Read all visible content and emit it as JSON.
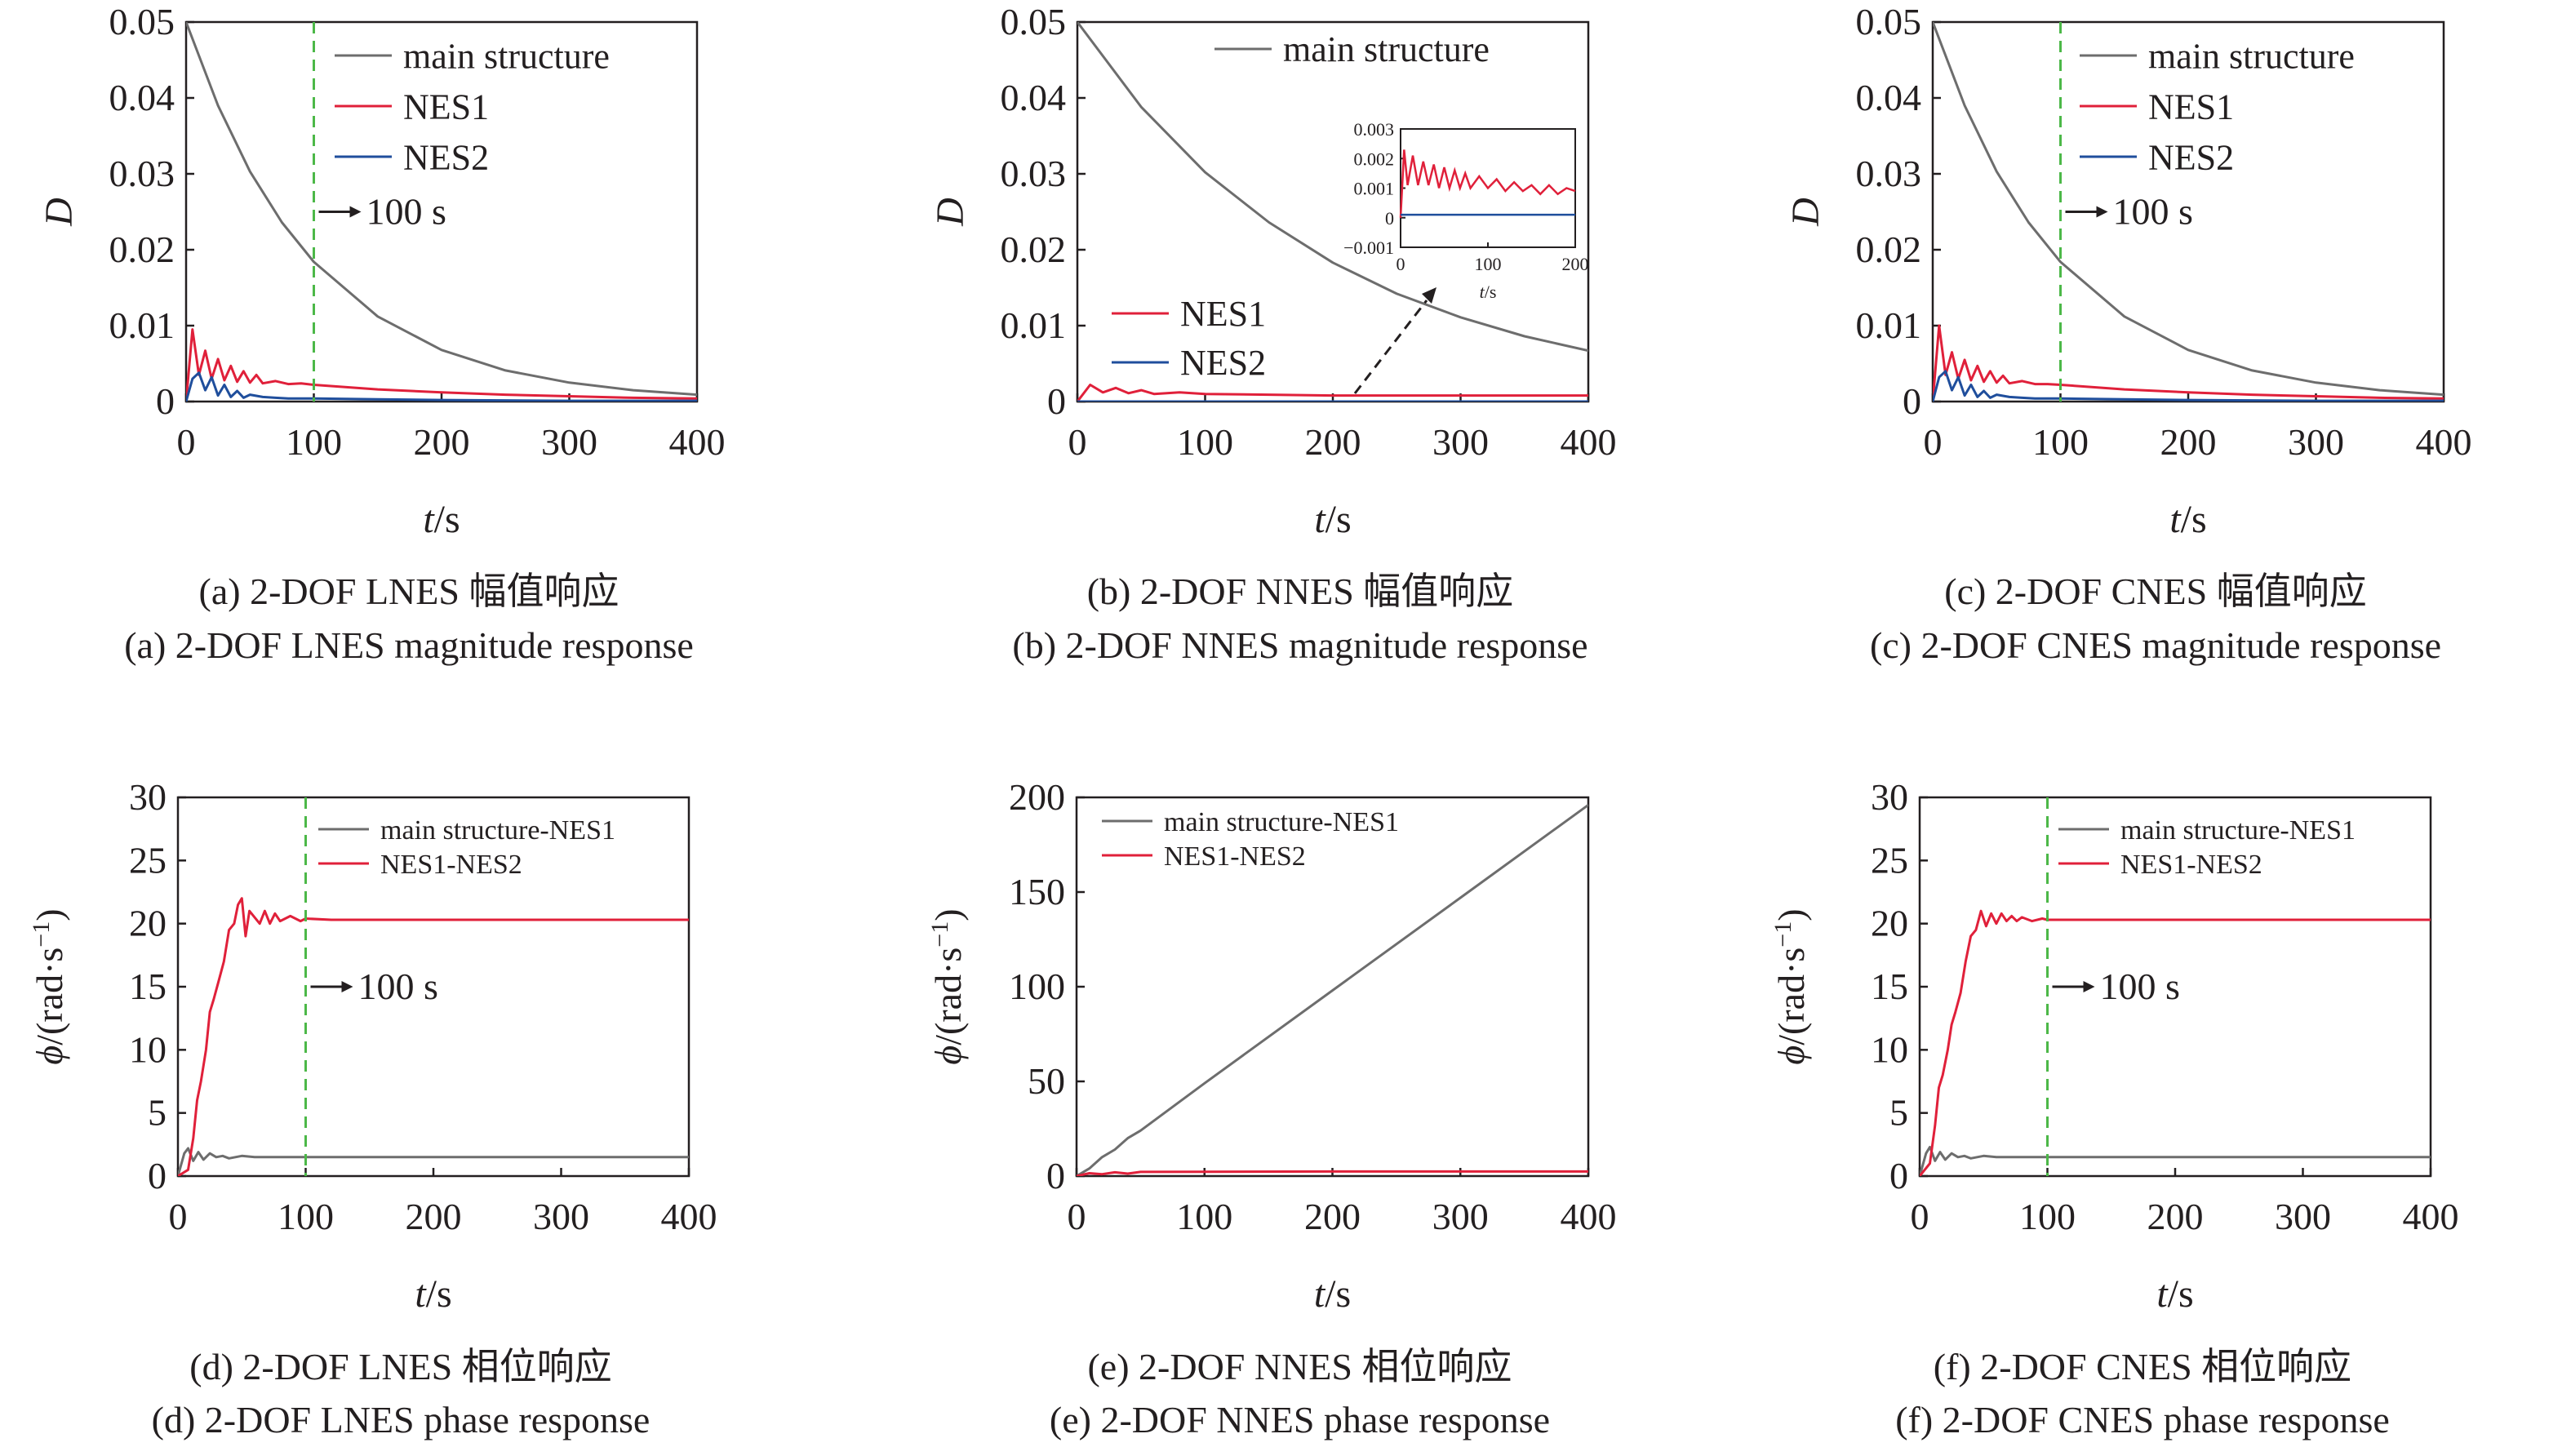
{
  "colors": {
    "main structure": "#6d6d6d",
    "NES1": "#e0203a",
    "NES2": "#1f4e9c",
    "main structure-NES1": "#6d6d6d",
    "NES1-NES2": "#e0203a",
    "marker": "#4cb848"
  },
  "chart_data": [
    {
      "type": "line",
      "caption_zh": "(a) 2-DOF LNES 幅值响应",
      "caption_en": "(a) 2-DOF LNES magnitude response",
      "xlabel_var": "t",
      "xlabel_unit": "/s",
      "ylabel": "D",
      "xlim": [
        0,
        400
      ],
      "ylim": [
        0,
        0.05
      ],
      "xticks": [
        "0",
        "100",
        "200",
        "300",
        "400"
      ],
      "yticks": [
        "0",
        "0.01",
        "0.02",
        "0.03",
        "0.04",
        "0.05"
      ],
      "marker_x": 100,
      "marker_label": "100 s",
      "marker_y": 0.025,
      "legend": "top-right",
      "series": [
        {
          "name": "main structure",
          "x": [
            0,
            25,
            50,
            75,
            100,
            150,
            200,
            250,
            300,
            350,
            400
          ],
          "y": [
            0.05,
            0.039,
            0.0303,
            0.0236,
            0.0184,
            0.0112,
            0.0068,
            0.0041,
            0.0025,
            0.0015,
            0.0009
          ]
        },
        {
          "name": "NES1",
          "x": [
            0,
            5,
            10,
            15,
            20,
            25,
            30,
            35,
            40,
            45,
            50,
            55,
            60,
            70,
            80,
            90,
            100,
            150,
            200,
            250,
            300,
            350,
            400
          ],
          "y": [
            0,
            0.0095,
            0.0035,
            0.0067,
            0.003,
            0.0056,
            0.0028,
            0.0047,
            0.0026,
            0.004,
            0.0025,
            0.0035,
            0.0024,
            0.0027,
            0.0023,
            0.0024,
            0.0022,
            0.0016,
            0.0012,
            0.0009,
            0.0007,
            0.0005,
            0.0004
          ]
        },
        {
          "name": "NES2",
          "x": [
            0,
            5,
            10,
            15,
            20,
            25,
            30,
            35,
            40,
            45,
            50,
            60,
            70,
            80,
            100,
            150,
            200,
            300,
            400
          ],
          "y": [
            0,
            0.003,
            0.0038,
            0.0015,
            0.0032,
            0.0008,
            0.0022,
            0.0006,
            0.0014,
            0.0005,
            0.0009,
            0.0006,
            0.0005,
            0.0004,
            0.0004,
            0.0003,
            0.0002,
            0.0001,
            0.0001
          ]
        }
      ]
    },
    {
      "type": "line",
      "caption_zh": "(b) 2-DOF NNES 幅值响应",
      "caption_en": "(b) 2-DOF NNES magnitude response",
      "xlabel_var": "t",
      "xlabel_unit": "/s",
      "ylabel": "D",
      "xlim": [
        0,
        400
      ],
      "ylim": [
        0,
        0.05
      ],
      "xticks": [
        "0",
        "100",
        "200",
        "300",
        "400"
      ],
      "yticks": [
        "0",
        "0.01",
        "0.02",
        "0.03",
        "0.04",
        "0.05"
      ],
      "legend": "split",
      "series": [
        {
          "name": "main structure",
          "x": [
            0,
            50,
            100,
            150,
            200,
            250,
            300,
            350,
            400
          ],
          "y": [
            0.05,
            0.0388,
            0.0302,
            0.0236,
            0.0183,
            0.0142,
            0.0111,
            0.0086,
            0.0067
          ]
        },
        {
          "name": "NES1",
          "x": [
            0,
            10,
            20,
            30,
            40,
            50,
            60,
            80,
            100,
            150,
            200,
            300,
            400
          ],
          "y": [
            0,
            0.0022,
            0.0012,
            0.0018,
            0.0011,
            0.0015,
            0.001,
            0.0012,
            0.001,
            0.0009,
            0.0008,
            0.0008,
            0.0008
          ]
        },
        {
          "name": "NES2",
          "x": [
            0,
            400
          ],
          "y": [
            0,
            0
          ]
        }
      ],
      "inset": {
        "xlim": [
          0,
          200
        ],
        "ylim": [
          -0.001,
          0.003
        ],
        "xticks": [
          "0",
          "100",
          "200"
        ],
        "yticks": [
          "−0.001",
          "0",
          "0.001",
          "0.002",
          "0.003"
        ],
        "xlabel_var": "t",
        "xlabel_unit": "/s",
        "series": [
          {
            "name": "NES1",
            "x": [
              0,
              4,
              8,
              14,
              20,
              26,
              32,
              38,
              44,
              50,
              56,
              62,
              68,
              74,
              80,
              90,
              100,
              110,
              120,
              130,
              140,
              150,
              160,
              170,
              180,
              190,
              200
            ],
            "y": [
              0,
              0.0023,
              0.0011,
              0.0021,
              0.0011,
              0.0019,
              0.0011,
              0.0018,
              0.001,
              0.0017,
              0.001,
              0.0016,
              0.001,
              0.0015,
              0.001,
              0.0014,
              0.001,
              0.0013,
              0.0009,
              0.0012,
              0.0009,
              0.0011,
              0.0008,
              0.0011,
              0.0008,
              0.001,
              0.0009
            ]
          },
          {
            "name": "NES2",
            "x": [
              0,
              200
            ],
            "y": [
              0.0001,
              0.0001
            ]
          }
        ]
      }
    },
    {
      "type": "line",
      "caption_zh": "(c) 2-DOF CNES 幅值响应",
      "caption_en": "(c) 2-DOF CNES magnitude response",
      "xlabel_var": "t",
      "xlabel_unit": "/s",
      "ylabel": "D",
      "xlim": [
        0,
        400
      ],
      "ylim": [
        0,
        0.05
      ],
      "xticks": [
        "0",
        "100",
        "200",
        "300",
        "400"
      ],
      "yticks": [
        "0",
        "0.01",
        "0.02",
        "0.03",
        "0.04",
        "0.05"
      ],
      "marker_x": 100,
      "marker_label": "100 s",
      "marker_y": 0.025,
      "legend": "top-right",
      "series": [
        {
          "name": "main structure",
          "x": [
            0,
            25,
            50,
            75,
            100,
            150,
            200,
            250,
            300,
            350,
            400
          ],
          "y": [
            0.05,
            0.039,
            0.0303,
            0.0236,
            0.0184,
            0.0112,
            0.0068,
            0.0041,
            0.0025,
            0.0015,
            0.0009
          ]
        },
        {
          "name": "NES1",
          "x": [
            0,
            5,
            10,
            15,
            20,
            25,
            30,
            35,
            40,
            45,
            50,
            55,
            60,
            70,
            80,
            90,
            100,
            150,
            200,
            250,
            300,
            350,
            400
          ],
          "y": [
            0,
            0.01,
            0.0035,
            0.0065,
            0.003,
            0.0055,
            0.0028,
            0.0047,
            0.0026,
            0.004,
            0.0025,
            0.0034,
            0.0024,
            0.0027,
            0.0023,
            0.0023,
            0.0022,
            0.0016,
            0.0012,
            0.0009,
            0.0007,
            0.0005,
            0.0004
          ]
        },
        {
          "name": "NES2",
          "x": [
            0,
            5,
            10,
            15,
            20,
            25,
            30,
            35,
            40,
            45,
            50,
            60,
            70,
            80,
            100,
            150,
            200,
            300,
            400
          ],
          "y": [
            0,
            0.0032,
            0.004,
            0.0015,
            0.0032,
            0.0008,
            0.0022,
            0.0006,
            0.0014,
            0.0005,
            0.0009,
            0.0006,
            0.0005,
            0.0004,
            0.0004,
            0.0003,
            0.0002,
            0.0001,
            0.0001
          ]
        }
      ]
    },
    {
      "type": "line",
      "caption_zh": "(d) 2-DOF LNES 相位响应",
      "caption_en": "(d) 2-DOF LNES phase response",
      "xlabel_var": "t",
      "xlabel_unit": "/s",
      "ylabel_var": "ϕ",
      "ylabel_unit": "/(rad·s",
      "ylabel_sup": "−1",
      "ylabel_close": ")",
      "xlim": [
        0,
        400
      ],
      "ylim": [
        0,
        30
      ],
      "xticks": [
        "0",
        "100",
        "200",
        "300",
        "400"
      ],
      "yticks": [
        "0",
        "5",
        "10",
        "15",
        "20",
        "25",
        "30"
      ],
      "marker_x": 100,
      "marker_label": "100 s",
      "marker_y": 15,
      "legend": "top-right",
      "series": [
        {
          "name": "main structure-NES1",
          "x": [
            0,
            5,
            8,
            12,
            16,
            20,
            25,
            30,
            35,
            40,
            50,
            60,
            80,
            100,
            200,
            400
          ],
          "y": [
            0,
            1.8,
            2.2,
            1.2,
            1.9,
            1.3,
            1.8,
            1.5,
            1.6,
            1.4,
            1.6,
            1.5,
            1.5,
            1.5,
            1.5,
            1.5
          ]
        },
        {
          "name": "NES1-NES2",
          "x": [
            0,
            8,
            12,
            15,
            18,
            22,
            25,
            28,
            32,
            36,
            40,
            44,
            47,
            50,
            53,
            56,
            60,
            64,
            68,
            72,
            76,
            80,
            88,
            96,
            100,
            120,
            150,
            200,
            400
          ],
          "y": [
            0,
            0.5,
            3,
            6,
            7.5,
            10,
            13,
            14,
            15.5,
            17,
            19.5,
            20,
            21.5,
            22,
            19,
            21,
            20.5,
            20,
            21,
            20,
            20.8,
            20.2,
            20.6,
            20.2,
            20.4,
            20.3,
            20.3,
            20.3,
            20.3
          ]
        }
      ]
    },
    {
      "type": "line",
      "caption_zh": "(e) 2-DOF NNES 相位响应",
      "caption_en": "(e) 2-DOF NNES phase response",
      "xlabel_var": "t",
      "xlabel_unit": "/s",
      "ylabel_var": "ϕ",
      "ylabel_unit": "/(rad·s",
      "ylabel_sup": "−1",
      "ylabel_close": ")",
      "xlim": [
        0,
        400
      ],
      "ylim": [
        0,
        200
      ],
      "xticks": [
        "0",
        "100",
        "200",
        "300",
        "400"
      ],
      "yticks": [
        "0",
        "50",
        "100",
        "150",
        "200"
      ],
      "legend": "top-left",
      "series": [
        {
          "name": "main structure-NES1",
          "x": [
            0,
            10,
            20,
            30,
            40,
            50,
            100,
            200,
            300,
            400
          ],
          "y": [
            0,
            4,
            10,
            14,
            20,
            24,
            49,
            98,
            147,
            196
          ]
        },
        {
          "name": "NES1-NES2",
          "x": [
            0,
            10,
            20,
            30,
            40,
            50,
            100,
            200,
            300,
            400
          ],
          "y": [
            0,
            1.5,
            1.0,
            2.0,
            1.3,
            2.2,
            2.3,
            2.4,
            2.4,
            2.4
          ]
        }
      ]
    },
    {
      "type": "line",
      "caption_zh": "(f) 2-DOF CNES 相位响应",
      "caption_en": "(f) 2-DOF CNES phase response",
      "xlabel_var": "t",
      "xlabel_unit": "/s",
      "ylabel_var": "ϕ",
      "ylabel_unit": "/(rad·s",
      "ylabel_sup": "−1",
      "ylabel_close": ")",
      "xlim": [
        0,
        400
      ],
      "ylim": [
        0,
        30
      ],
      "xticks": [
        "0",
        "100",
        "200",
        "300",
        "400"
      ],
      "yticks": [
        "0",
        "5",
        "10",
        "15",
        "20",
        "25",
        "30"
      ],
      "marker_x": 100,
      "marker_label": "100 s",
      "marker_y": 15,
      "legend": "top-right",
      "series": [
        {
          "name": "main structure-NES1",
          "x": [
            0,
            5,
            8,
            12,
            16,
            20,
            25,
            30,
            35,
            40,
            50,
            60,
            80,
            100,
            200,
            400
          ],
          "y": [
            0,
            1.8,
            2.3,
            1.2,
            1.9,
            1.3,
            1.8,
            1.5,
            1.6,
            1.4,
            1.6,
            1.5,
            1.5,
            1.5,
            1.5,
            1.5
          ]
        },
        {
          "name": "NES1-NES2",
          "x": [
            0,
            8,
            12,
            15,
            18,
            22,
            25,
            28,
            32,
            36,
            40,
            44,
            48,
            52,
            56,
            60,
            64,
            68,
            72,
            76,
            80,
            88,
            96,
            100,
            120,
            150,
            200,
            400
          ],
          "y": [
            0,
            1,
            4,
            7,
            8,
            10,
            12,
            13,
            14.5,
            17,
            19,
            19.5,
            21,
            19.8,
            20.8,
            20,
            20.8,
            20.2,
            20.6,
            20.2,
            20.5,
            20.2,
            20.4,
            20.3,
            20.3,
            20.3,
            20.3,
            20.3
          ]
        }
      ]
    }
  ]
}
